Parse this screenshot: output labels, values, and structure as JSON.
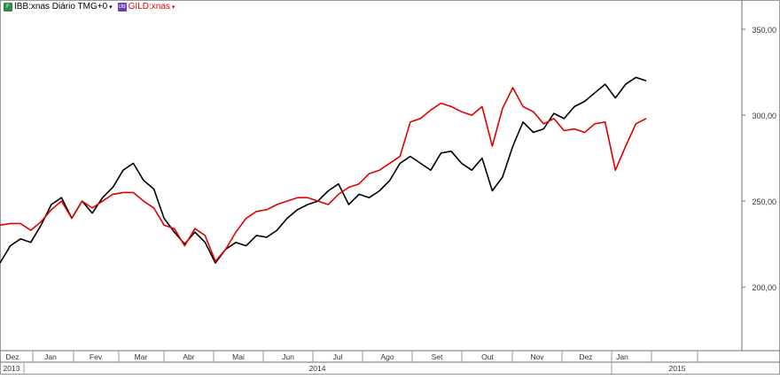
{
  "legend": {
    "items": [
      {
        "label": "IBB:xnas Diário TMG+0",
        "color": "#000000",
        "icon_color": "#2e8b3e",
        "icon": "chart-icon",
        "icon_text": "F"
      },
      {
        "label": "GILD:xnas",
        "color": "#e00000",
        "icon_color": "#6a3fb5",
        "icon": "chart-icon",
        "icon_text": "cfd"
      }
    ],
    "arrow": "▾"
  },
  "chart_data": {
    "type": "line",
    "y_ticks": [
      "350,00",
      "300,00",
      "250,00",
      "200,00"
    ],
    "y_tick_values": [
      350,
      300,
      250,
      200
    ],
    "ylim": [
      163,
      367
    ],
    "x_month_labels": [
      "Dez",
      "Jan",
      "Fev",
      "Mar",
      "Abr",
      "Mai",
      "Jun",
      "Jul",
      "Ago",
      "Set",
      "Out",
      "Nov",
      "Dez",
      "Jan"
    ],
    "x_year_labels": [
      "2013",
      "2014",
      "2015"
    ],
    "grid": false,
    "series": [
      {
        "name": "IBB:xnas",
        "color": "#000000",
        "values": [
          214,
          224,
          228,
          226,
          236,
          248,
          252,
          240,
          250,
          243,
          252,
          258,
          268,
          272,
          262,
          257,
          240,
          232,
          225,
          232,
          226,
          214,
          222,
          226,
          224,
          230,
          229,
          233,
          240,
          245,
          248,
          250,
          256,
          260,
          248,
          254,
          252,
          256,
          262,
          272,
          276,
          272,
          268,
          278,
          279,
          272,
          268,
          275,
          256,
          264,
          282,
          296,
          290,
          292,
          301,
          298,
          305,
          308,
          313,
          318,
          310,
          318,
          322,
          320
        ]
      },
      {
        "name": "GILD:xnas",
        "color": "#e00000",
        "values": [
          236,
          237,
          237,
          233,
          238,
          245,
          250,
          240,
          250,
          246,
          250,
          254,
          255,
          255,
          250,
          246,
          236,
          234,
          224,
          234,
          230,
          215,
          222,
          232,
          240,
          244,
          245,
          248,
          250,
          252,
          252,
          250,
          248,
          254,
          258,
          260,
          266,
          268,
          272,
          276,
          296,
          298,
          303,
          307,
          305,
          302,
          300,
          305,
          282,
          304,
          316,
          305,
          302,
          295,
          298,
          291,
          292,
          290,
          295,
          296,
          268,
          282,
          295,
          298
        ]
      }
    ]
  }
}
